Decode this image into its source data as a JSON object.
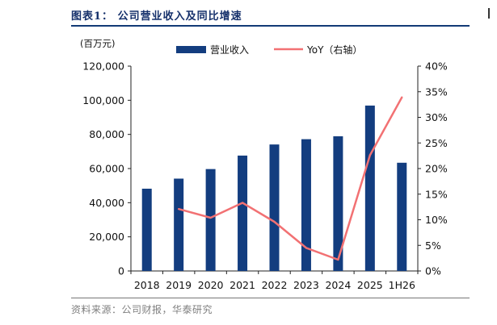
{
  "figure": {
    "title": "图表1：  公司营业收入及同比增速",
    "source": "资料来源：公司财报，华泰研究"
  },
  "colors": {
    "bar": "#133d7f",
    "line": "#f27173",
    "title": "#15306b"
  },
  "chart_data": {
    "type": "bar",
    "categories": [
      "2018",
      "2019",
      "2020",
      "2021",
      "2022",
      "2023",
      "2024",
      "2025",
      "1H26"
    ],
    "y_unit_label": "(百万元)",
    "ylim": [
      0,
      120000
    ],
    "y_ticks": [
      "0",
      "20,000",
      "40,000",
      "60,000",
      "80,000",
      "100,000",
      "120,000"
    ],
    "y2lim": [
      0,
      40
    ],
    "y2_ticks": [
      "0%",
      "5%",
      "10%",
      "15%",
      "20%",
      "25%",
      "30%",
      "35%",
      "40%"
    ],
    "grid": false,
    "legend_position": "top",
    "series": [
      {
        "name": "营业收入",
        "kind": "bar",
        "axis": "left",
        "values": [
          48200,
          54100,
          59700,
          67600,
          74100,
          77200,
          78900,
          96900,
          63400
        ]
      },
      {
        "name": "YoY（右轴）",
        "kind": "line",
        "axis": "right",
        "values": [
          null,
          12.1,
          10.4,
          13.3,
          9.6,
          4.5,
          2.2,
          22.6,
          33.9
        ]
      }
    ]
  }
}
